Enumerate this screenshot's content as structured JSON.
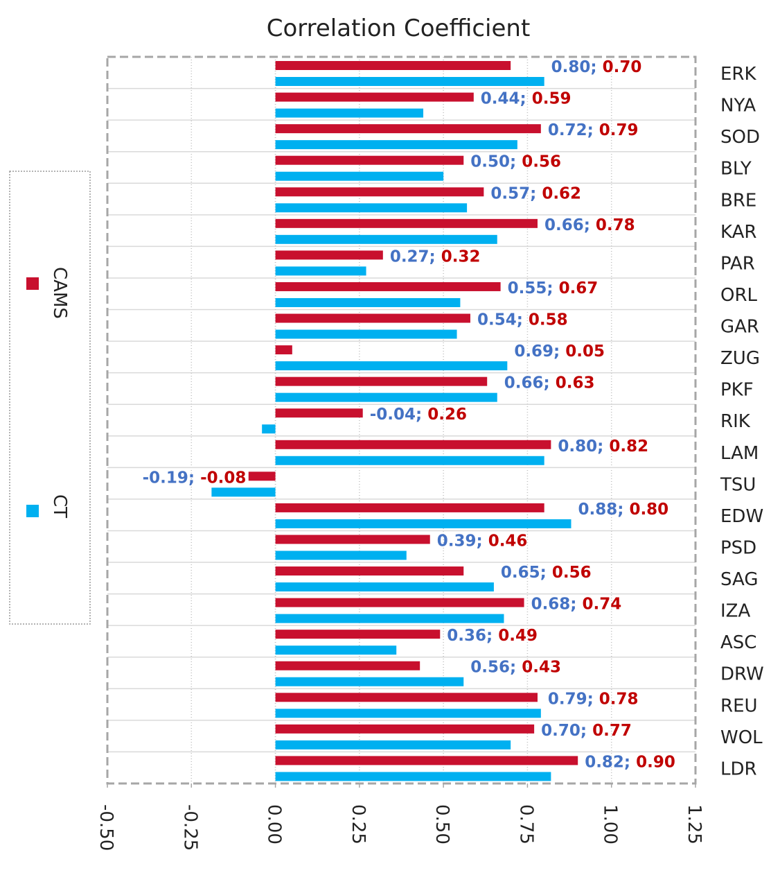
{
  "chart_data": {
    "type": "bar",
    "orientation": "horizontal",
    "title": "Correlation Coefficient",
    "xlabel": "",
    "ylabel": "",
    "xlim": [
      -0.5,
      1.25
    ],
    "x_ticks": [
      "-0.50",
      "-0.25",
      "0.00",
      "0.25",
      "0.50",
      "0.75",
      "1.00",
      "1.25"
    ],
    "x_tick_values": [
      -0.5,
      -0.25,
      0.0,
      0.25,
      0.5,
      0.75,
      1.0,
      1.25
    ],
    "grid": "vertical dotted",
    "legend_position": "left",
    "categories": [
      "ERK",
      "NYA",
      "SOD",
      "BLY",
      "BRE",
      "KAR",
      "PAR",
      "ORL",
      "GAR",
      "ZUG",
      "PKF",
      "RIK",
      "LAM",
      "TSU",
      "EDW",
      "PSD",
      "SAG",
      "IZA",
      "ASC",
      "DRW",
      "REU",
      "WOL",
      "LDR"
    ],
    "series": [
      {
        "name": "CAMS",
        "color": "#c8102e",
        "values": [
          0.7,
          0.59,
          0.79,
          0.56,
          0.62,
          0.78,
          0.32,
          0.67,
          0.58,
          0.05,
          0.63,
          0.26,
          0.82,
          -0.08,
          0.8,
          0.46,
          0.56,
          0.74,
          0.49,
          0.43,
          0.78,
          0.77,
          0.9
        ],
        "labels": [
          "0.70",
          "0.59",
          "0.79",
          "0.56",
          "0.62",
          "0.78",
          "0.32",
          "0.67",
          "0.58",
          "0.05",
          "0.63",
          "0.26",
          "0.82",
          "-0.08",
          "0.80",
          "0.46",
          "0.56",
          "0.74",
          "0.49",
          "0.43",
          "0.78",
          "0.77",
          "0.90"
        ]
      },
      {
        "name": "CT",
        "color": "#00b0f0",
        "values": [
          0.8,
          0.44,
          0.72,
          0.5,
          0.57,
          0.66,
          0.27,
          0.55,
          0.54,
          0.69,
          0.66,
          -0.04,
          0.8,
          -0.19,
          0.88,
          0.39,
          0.65,
          0.68,
          0.36,
          0.56,
          0.79,
          0.7,
          0.82
        ],
        "labels": [
          "0.80",
          "0.44",
          "0.72",
          "0.50",
          "0.57",
          "0.66",
          "0.27",
          "0.55",
          "0.54",
          "0.69",
          "0.66",
          "-0.04",
          "0.80",
          "-0.19",
          "0.88",
          "0.39",
          "0.65",
          "0.68",
          "0.36",
          "0.56",
          "0.79",
          "0.70",
          "0.82"
        ]
      }
    ],
    "label_separator": "; ",
    "label_colors": {
      "CT": "#4472c4",
      "CAMS": "#c00000"
    }
  }
}
